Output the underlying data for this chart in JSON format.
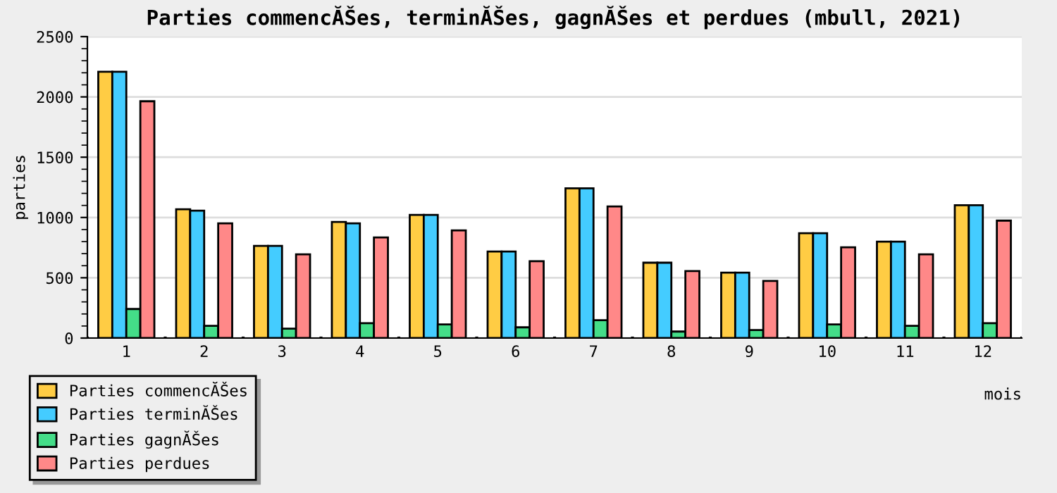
{
  "chart_data": {
    "type": "bar",
    "title": "Parties commencĂŠes, terminĂŠes, gagnĂŠes et perdues (mbull, 2021)",
    "xlabel": "mois",
    "ylabel": "parties",
    "categories": [
      "1",
      "2",
      "3",
      "4",
      "5",
      "6",
      "7",
      "8",
      "9",
      "10",
      "11",
      "12"
    ],
    "series": [
      {
        "name": "Parties commencĂŠes",
        "color": "#ffcc44",
        "values": [
          2209,
          1068,
          765,
          963,
          1021,
          718,
          1242,
          625,
          543,
          870,
          800,
          1102
        ]
      },
      {
        "name": "Parties terminĂŠes",
        "color": "#44ccff",
        "values": [
          2209,
          1056,
          765,
          951,
          1021,
          718,
          1242,
          625,
          543,
          870,
          800,
          1102
        ]
      },
      {
        "name": "Parties gagnĂŠes",
        "color": "#44dd88",
        "values": [
          241,
          101,
          78,
          124,
          113,
          89,
          148,
          54,
          66,
          113,
          101,
          124
        ]
      },
      {
        "name": "Parties perdues",
        "color": "#ff8888",
        "values": [
          1964,
          951,
          695,
          835,
          893,
          637,
          1091,
          555,
          474,
          753,
          695,
          974
        ]
      }
    ],
    "ylim": [
      0,
      2500
    ],
    "yticks": [
      0,
      500,
      1000,
      1500,
      2000,
      2500
    ],
    "grid": "y",
    "legend": "bottom left"
  }
}
